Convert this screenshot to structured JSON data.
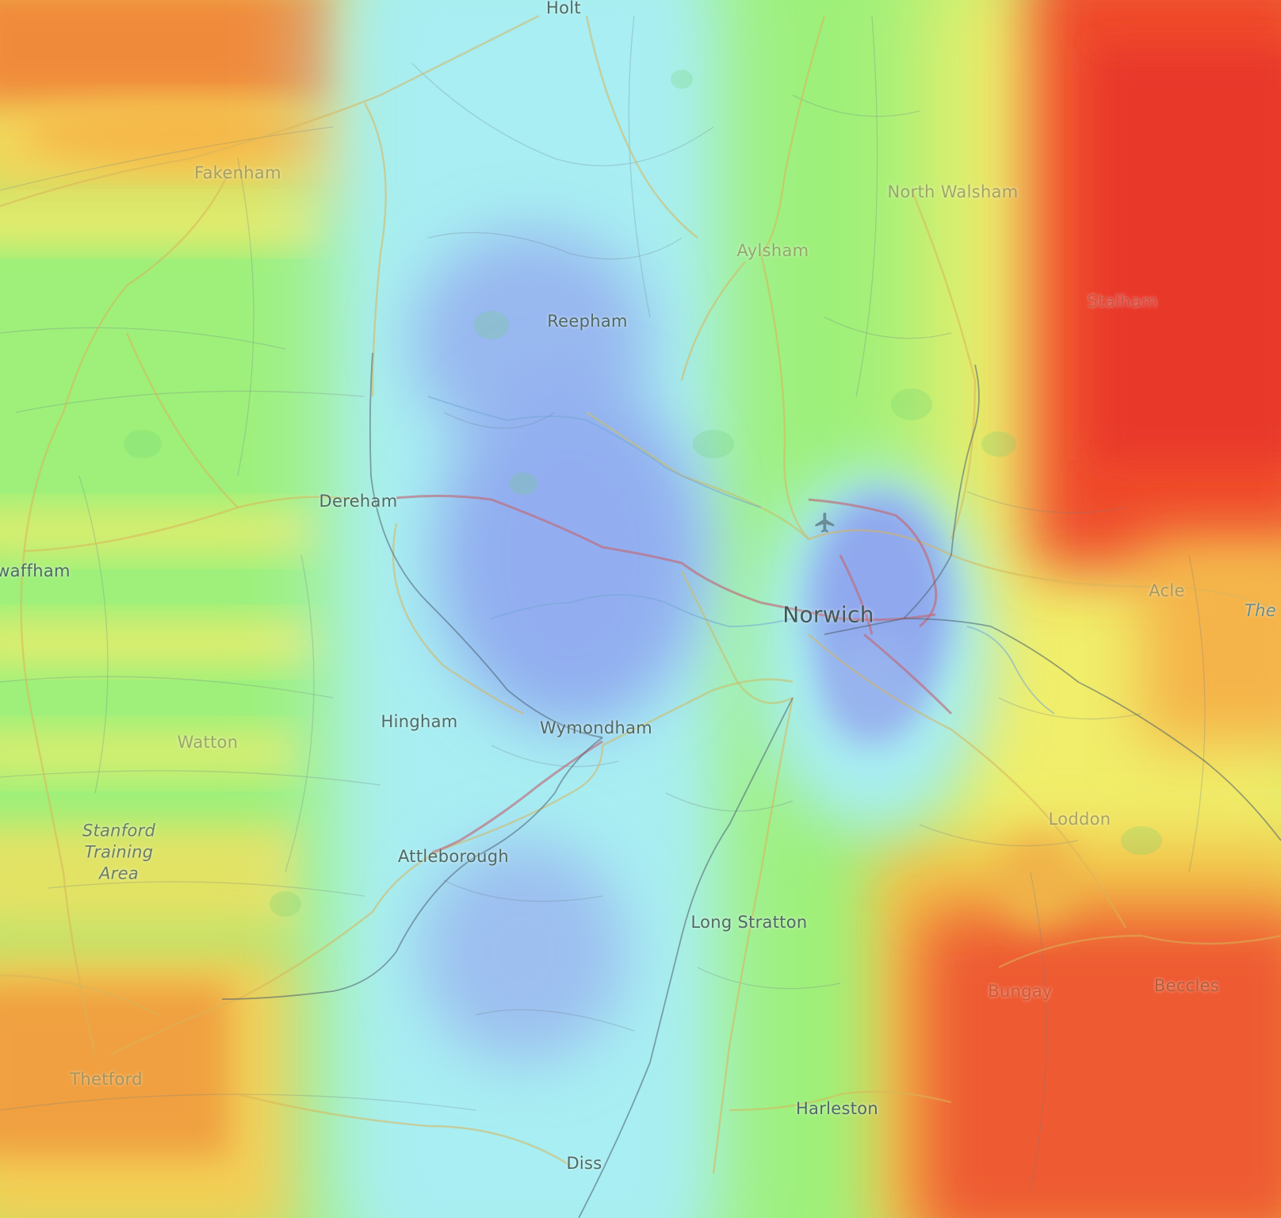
{
  "map": {
    "type": "heatmap-overlay-on-road-map",
    "region": "Norfolk",
    "colors": {
      "low": "#8fa8f0",
      "mid_low": "#a8eef2",
      "mid": "#9ef07a",
      "mid_high": "#f3ef6a",
      "high": "#ee4a2c"
    },
    "airport_icon": "airplane-icon",
    "places": {
      "holt": "Holt",
      "fakenham": "Fakenham",
      "north_walsham": "North Walsham",
      "aylsham": "Aylsham",
      "stalham": "Stalham",
      "reepham": "Reepham",
      "dereham": "Dereham",
      "swaffham": "waffham",
      "norwich": "Norwich",
      "acle": "Acle",
      "the_broads": "The",
      "hingham": "Hingham",
      "wymondham": "Wymondham",
      "watton": "Watton",
      "stanford_training_area_1": "Stanford",
      "stanford_training_area_2": "Training",
      "stanford_training_area_3": "Area",
      "loddon": "Loddon",
      "attleborough": "Attleborough",
      "long_stratton": "Long Stratton",
      "bungay": "Bungay",
      "beccles": "Beccles",
      "thetford": "Thetford",
      "harleston": "Harleston",
      "diss": "Diss"
    }
  }
}
